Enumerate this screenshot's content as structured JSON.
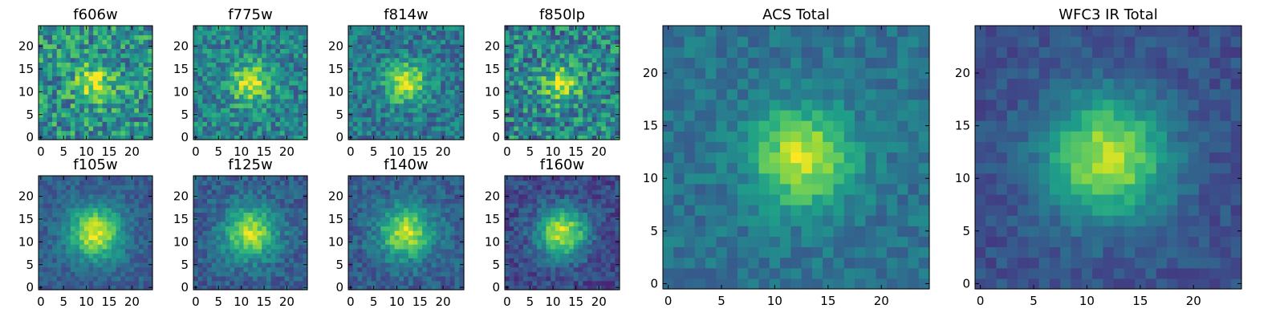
{
  "colormap": [
    "#440154",
    "#482878",
    "#3e4989",
    "#31688e",
    "#26828e",
    "#1f9e89",
    "#35b779",
    "#6ece58",
    "#b5de2b",
    "#fde725"
  ],
  "frame_color": "#000000",
  "chart_data": [
    {
      "type": "heatmap",
      "title": "f606w",
      "xlim": [
        0,
        24
      ],
      "ylim": [
        0,
        24
      ],
      "xticks": [
        0,
        5,
        10,
        15,
        20
      ],
      "yticks": [
        0,
        5,
        10,
        15,
        20
      ],
      "grid": false,
      "center": [
        12,
        12
      ],
      "sigma": 3.0,
      "amplitude": 0.4,
      "background": 0.5,
      "noise": 0.26,
      "seed": 11
    },
    {
      "type": "heatmap",
      "title": "f775w",
      "xlim": [
        0,
        24
      ],
      "ylim": [
        0,
        24
      ],
      "xticks": [
        0,
        5,
        10,
        15,
        20
      ],
      "yticks": [
        0,
        5,
        10,
        15,
        20
      ],
      "grid": false,
      "center": [
        12,
        12
      ],
      "sigma": 3.0,
      "amplitude": 0.5,
      "background": 0.45,
      "noise": 0.2,
      "seed": 23
    },
    {
      "type": "heatmap",
      "title": "f814w",
      "xlim": [
        0,
        24
      ],
      "ylim": [
        0,
        24
      ],
      "xticks": [
        0,
        5,
        10,
        15,
        20
      ],
      "yticks": [
        0,
        5,
        10,
        15,
        20
      ],
      "grid": false,
      "center": [
        12,
        12
      ],
      "sigma": 3.0,
      "amplitude": 0.55,
      "background": 0.4,
      "noise": 0.18,
      "seed": 37
    },
    {
      "type": "heatmap",
      "title": "f850lp",
      "xlim": [
        0,
        24
      ],
      "ylim": [
        0,
        24
      ],
      "xticks": [
        0,
        5,
        10,
        15,
        20
      ],
      "yticks": [
        0,
        5,
        10,
        15,
        20
      ],
      "grid": false,
      "center": [
        12,
        12
      ],
      "sigma": 2.8,
      "amplitude": 0.45,
      "background": 0.45,
      "noise": 0.26,
      "seed": 41
    },
    {
      "type": "heatmap",
      "title": "f105w",
      "xlim": [
        0,
        24
      ],
      "ylim": [
        0,
        24
      ],
      "xticks": [
        0,
        5,
        10,
        15,
        20
      ],
      "yticks": [
        0,
        5,
        10,
        15,
        20
      ],
      "grid": false,
      "center": [
        12,
        12
      ],
      "sigma": 4.0,
      "amplitude": 0.65,
      "background": 0.3,
      "noise": 0.1,
      "seed": 53
    },
    {
      "type": "heatmap",
      "title": "f125w",
      "xlim": [
        0,
        24
      ],
      "ylim": [
        0,
        24
      ],
      "xticks": [
        0,
        5,
        10,
        15,
        20
      ],
      "yticks": [
        0,
        5,
        10,
        15,
        20
      ],
      "grid": false,
      "center": [
        12,
        12
      ],
      "sigma": 4.0,
      "amplitude": 0.6,
      "background": 0.3,
      "noise": 0.12,
      "seed": 67
    },
    {
      "type": "heatmap",
      "title": "f140w",
      "xlim": [
        0,
        24
      ],
      "ylim": [
        0,
        24
      ],
      "xticks": [
        0,
        5,
        10,
        15,
        20
      ],
      "yticks": [
        0,
        5,
        10,
        15,
        20
      ],
      "grid": false,
      "center": [
        12,
        12
      ],
      "sigma": 4.0,
      "amplitude": 0.6,
      "background": 0.3,
      "noise": 0.12,
      "seed": 79
    },
    {
      "type": "heatmap",
      "title": "f160w",
      "xlim": [
        0,
        24
      ],
      "ylim": [
        0,
        24
      ],
      "xticks": [
        0,
        5,
        10,
        15,
        20
      ],
      "yticks": [
        0,
        5,
        10,
        15,
        20
      ],
      "grid": false,
      "center": [
        12,
        12
      ],
      "sigma": 3.8,
      "amplitude": 0.7,
      "background": 0.22,
      "noise": 0.12,
      "seed": 83
    },
    {
      "type": "heatmap",
      "title": "ACS Total",
      "xlim": [
        0,
        24
      ],
      "ylim": [
        0,
        24
      ],
      "xticks": [
        0,
        5,
        10,
        15,
        20
      ],
      "yticks": [
        0,
        5,
        10,
        15,
        20
      ],
      "grid": false,
      "center": [
        12.5,
        12
      ],
      "sigma": 3.2,
      "amplitude": 0.55,
      "background": 0.38,
      "noise": 0.1,
      "seed": 97
    },
    {
      "type": "heatmap",
      "title": "WFC3 IR Total",
      "xlim": [
        0,
        24
      ],
      "ylim": [
        0,
        24
      ],
      "xticks": [
        0,
        5,
        10,
        15,
        20
      ],
      "yticks": [
        0,
        5,
        10,
        15,
        20
      ],
      "grid": false,
      "center": [
        12,
        12
      ],
      "sigma": 4.0,
      "amplitude": 0.65,
      "background": 0.25,
      "noise": 0.08,
      "seed": 101
    }
  ]
}
